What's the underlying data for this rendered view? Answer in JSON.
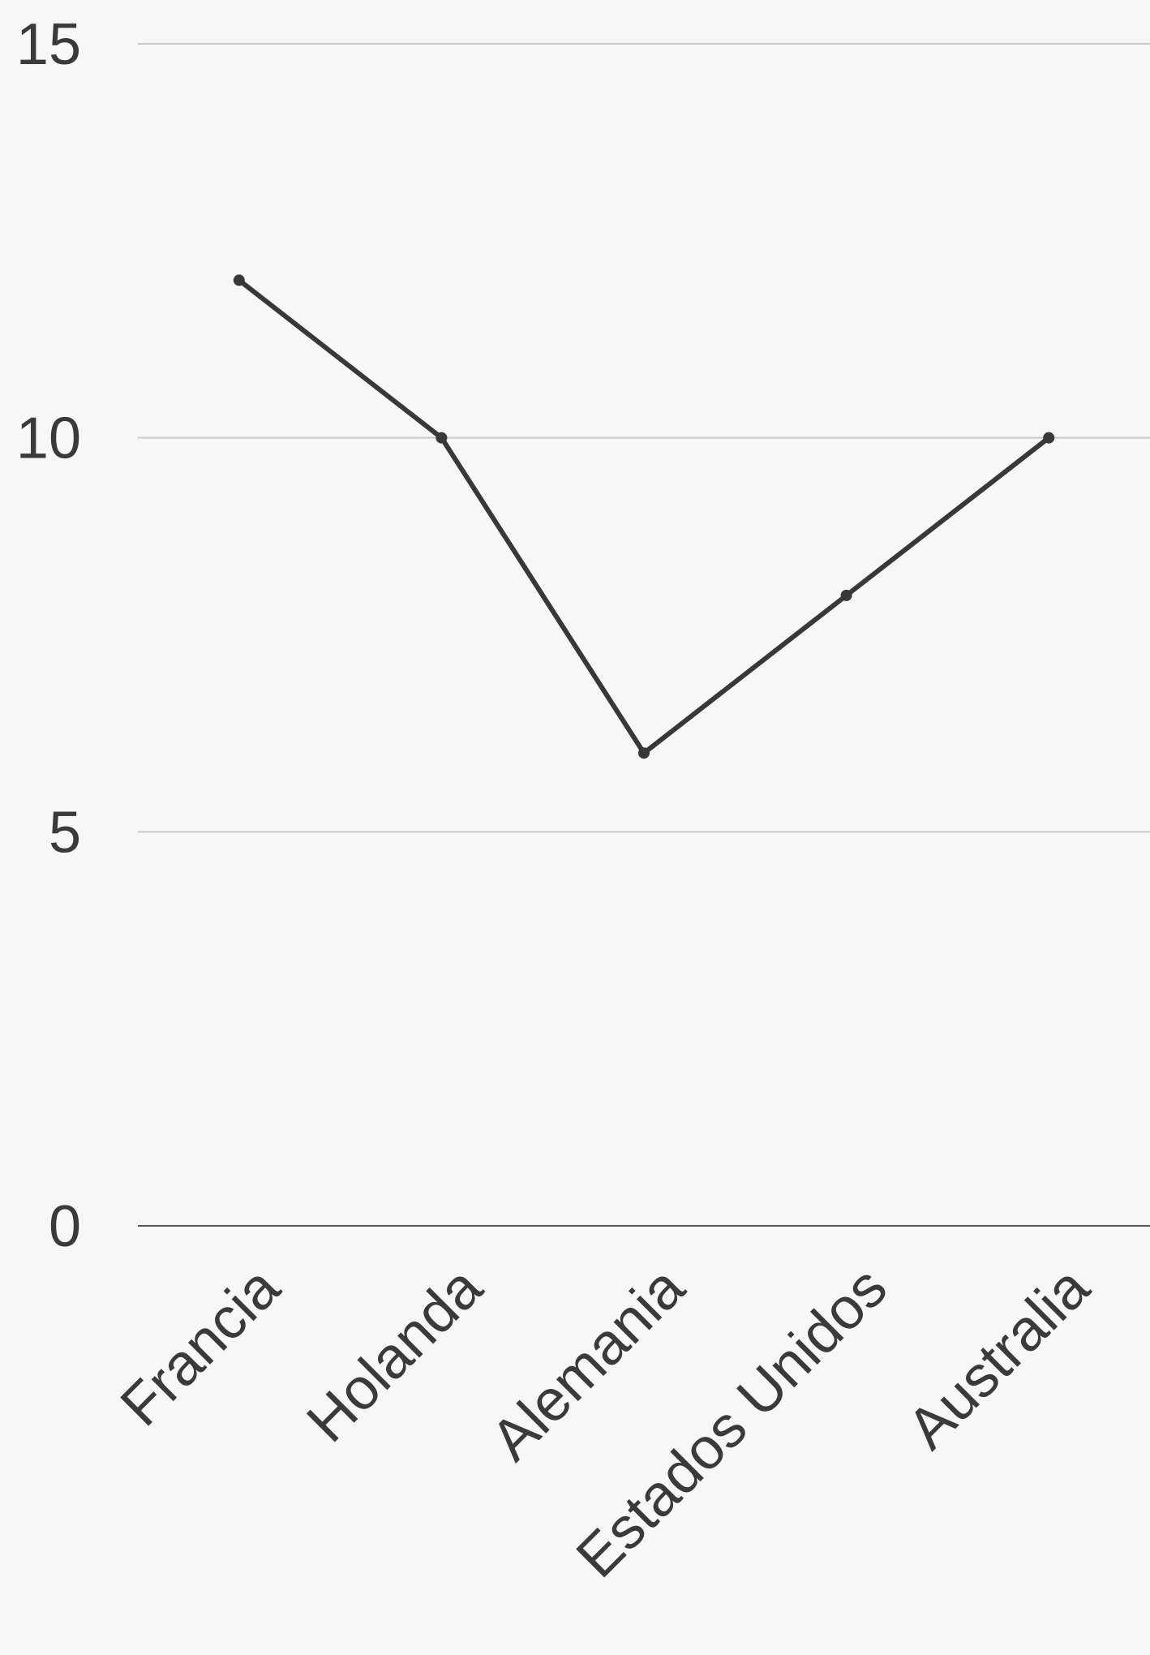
{
  "chart_data": {
    "type": "line",
    "title": "",
    "xlabel": "",
    "ylabel": "",
    "categories": [
      "Francia",
      "Holanda",
      "Alemania",
      "Estados Unidos",
      "Australia"
    ],
    "series": [
      {
        "values": [
          12,
          10,
          6,
          8,
          10
        ]
      }
    ],
    "ylim": [
      0,
      15
    ],
    "yticks": [
      "0",
      "5",
      "10",
      "15"
    ],
    "grid": true,
    "legend": "none",
    "colors": {
      "background": "#f7f7f7",
      "line": "#383838",
      "grid": "#c8c8c8",
      "axis": "#555555",
      "text": "#3a3a3a"
    }
  }
}
